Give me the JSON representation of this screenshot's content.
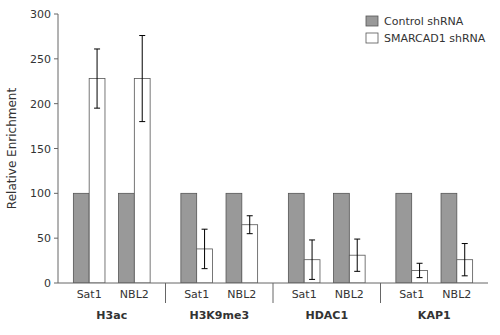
{
  "chart_data": {
    "type": "bar",
    "y_label": "Relative Enrichment",
    "groups": [
      "H3ac",
      "H3K9me3",
      "HDAC1",
      "KAP1"
    ],
    "categories": [
      "Sat1",
      "NBL2",
      "Sat1",
      "NBL2",
      "Sat1",
      "NBL2",
      "Sat1",
      "NBL2"
    ],
    "series": [
      {
        "name": "Control shRNA",
        "color": "#999999",
        "values": [
          100,
          100,
          100,
          100,
          100,
          100,
          100,
          100
        ],
        "errors": [
          0,
          0,
          0,
          0,
          0,
          0,
          0,
          0
        ]
      },
      {
        "name": "SMARCAD1 shRNA",
        "color": "#ffffff",
        "values": [
          228,
          228,
          38,
          65,
          26,
          31,
          14,
          26
        ],
        "errors": [
          33,
          48,
          22,
          10,
          22,
          18,
          8,
          18
        ]
      }
    ],
    "ylim": [
      0,
      300
    ],
    "yticks": [
      0,
      50,
      100,
      150,
      200,
      250,
      300
    ],
    "grid": false,
    "legend": "upper right"
  }
}
